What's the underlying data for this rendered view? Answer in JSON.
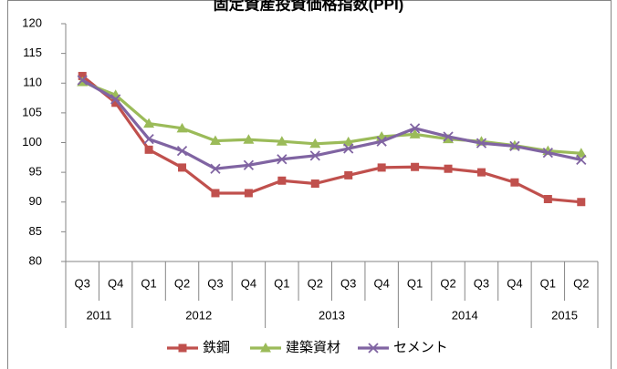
{
  "chart_data": {
    "type": "line",
    "title": "固定資産投資価格指数(PPI)",
    "categories": [
      "Q3",
      "Q4",
      "Q1",
      "Q2",
      "Q3",
      "Q4",
      "Q1",
      "Q2",
      "Q3",
      "Q4",
      "Q1",
      "Q2",
      "Q3",
      "Q4",
      "Q1",
      "Q2"
    ],
    "category_groups": [
      "2011",
      null,
      "2012",
      null,
      null,
      null,
      "2013",
      null,
      null,
      null,
      "2014",
      null,
      null,
      null,
      "2015",
      null
    ],
    "series": [
      {
        "name": "鉄鋼",
        "color": "#c0504d",
        "marker": "square",
        "values": [
          111.2,
          106.7,
          98.8,
          95.8,
          91.5,
          91.5,
          93.6,
          93.1,
          94.5,
          95.8,
          95.9,
          95.6,
          95.0,
          93.3,
          90.5,
          90.0
        ]
      },
      {
        "name": "建築資材",
        "color": "#9bbb59",
        "marker": "triangle",
        "values": [
          110.2,
          108.0,
          103.2,
          102.4,
          100.3,
          100.5,
          100.2,
          99.8,
          100.1,
          101.0,
          101.4,
          100.6,
          100.2,
          99.5,
          98.6,
          98.2
        ]
      },
      {
        "name": "セメント",
        "color": "#8064a2",
        "marker": "x",
        "values": [
          110.5,
          107.3,
          100.6,
          98.6,
          95.6,
          96.2,
          97.2,
          97.8,
          99.0,
          100.2,
          102.4,
          101.0,
          99.9,
          99.4,
          98.3,
          97.1
        ]
      }
    ],
    "ylim": [
      80,
      120
    ],
    "yticks": [
      80,
      85,
      90,
      95,
      100,
      105,
      110,
      115,
      120
    ],
    "grid": false,
    "legend": "bottom"
  }
}
